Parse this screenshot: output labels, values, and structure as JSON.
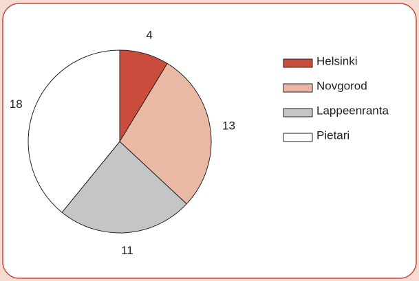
{
  "chart_data": {
    "type": "pie",
    "categories": [
      "Helsinki",
      "Novgorod",
      "Lappeenranta",
      "Pietari"
    ],
    "values": [
      4,
      13,
      11,
      18
    ],
    "colors": [
      "#c94c3c",
      "#e9b9a6",
      "#c3c5c7",
      "#ffffff"
    ],
    "legend": "right"
  }
}
